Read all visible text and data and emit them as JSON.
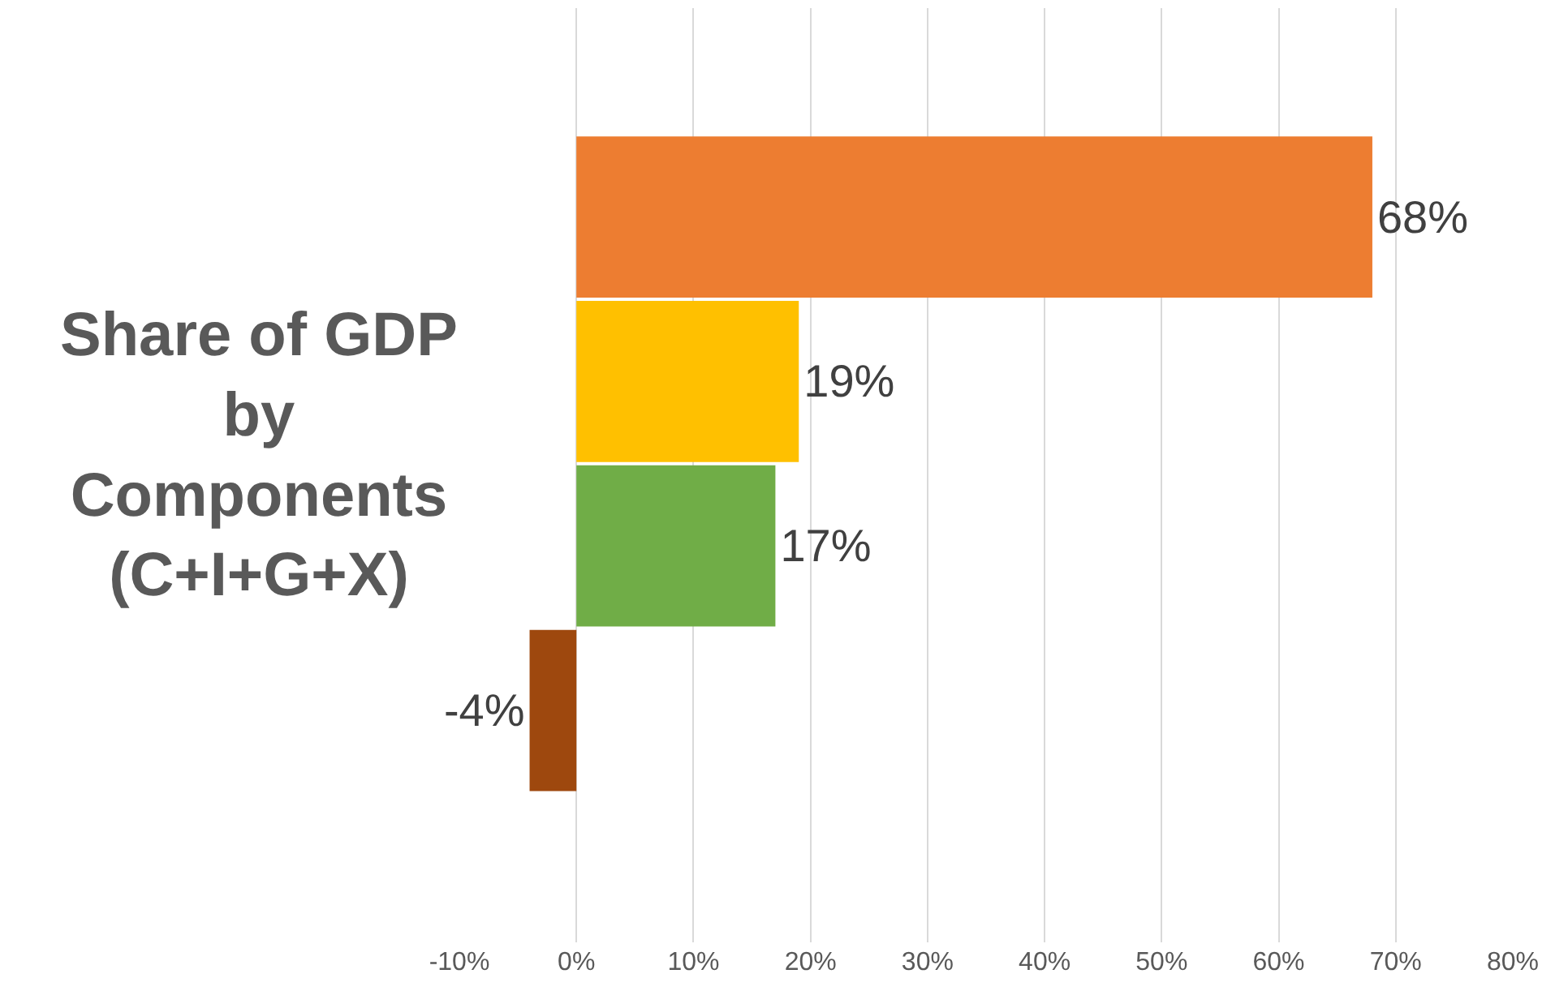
{
  "chart_data": {
    "type": "bar",
    "orientation": "horizontal",
    "title": "Share of GDP\nby\nComponents\n(C+I+G+X)",
    "categories": [
      null,
      null,
      null,
      null
    ],
    "values": [
      68,
      19,
      17,
      -4
    ],
    "colors": [
      "#ed7d31",
      "#ffc000",
      "#70ad47",
      "#9e480e"
    ],
    "value_labels": [
      "68%",
      "19%",
      "17%",
      "-4%"
    ],
    "xlim": [
      -10,
      80
    ],
    "xticks": [
      {
        "value": -10,
        "label": "-10%"
      },
      {
        "value": 0,
        "label": "0%"
      },
      {
        "value": 10,
        "label": "10%"
      },
      {
        "value": 20,
        "label": "20%"
      },
      {
        "value": 30,
        "label": "30%"
      },
      {
        "value": 40,
        "label": "40%"
      },
      {
        "value": 50,
        "label": "50%"
      },
      {
        "value": 60,
        "label": "60%"
      },
      {
        "value": 70,
        "label": "70%"
      },
      {
        "value": 80,
        "label": "80%"
      }
    ],
    "grid": "x"
  }
}
